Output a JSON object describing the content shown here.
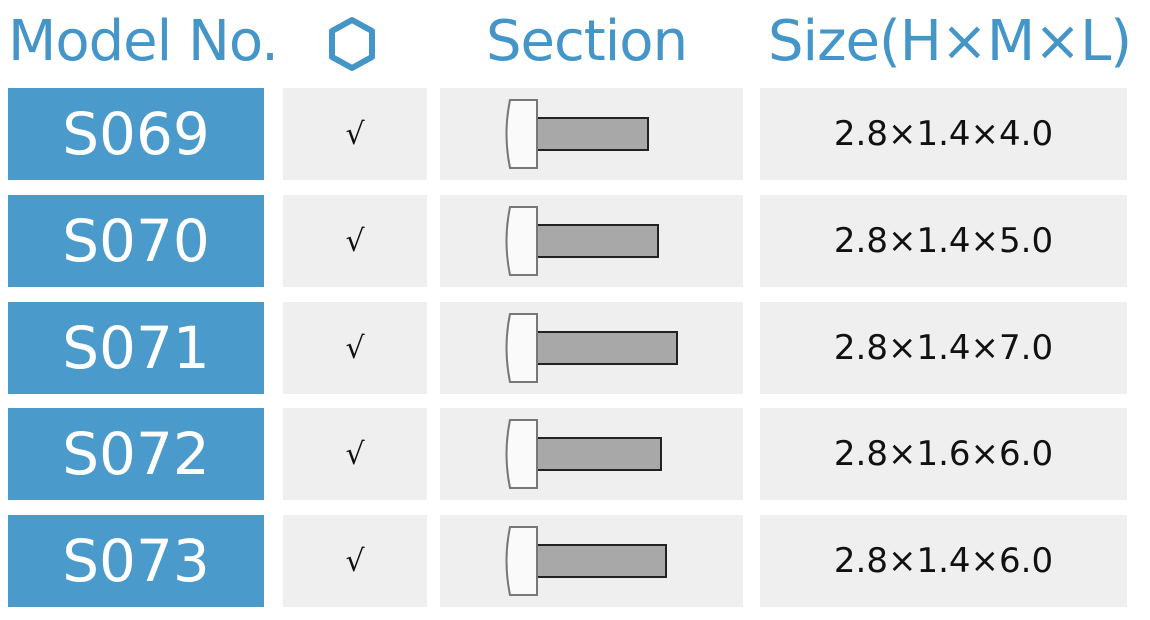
{
  "header": {
    "model_label": "Model No.",
    "drive_icon": "hexagon-socket-icon",
    "section_label": "Section",
    "size_label": "Size(H×M×L)"
  },
  "colors": {
    "accent": "#4a9bcb",
    "cell_bg": "#efefef"
  },
  "rows": [
    {
      "model": "S069",
      "check": "√",
      "size": "2.8×1.4×4.0",
      "length_mm": 4.0
    },
    {
      "model": "S070",
      "check": "√",
      "size": "2.8×1.4×5.0",
      "length_mm": 5.0
    },
    {
      "model": "S071",
      "check": "√",
      "size": "2.8×1.4×7.0",
      "length_mm": 7.0
    },
    {
      "model": "S072",
      "check": "√",
      "size": "2.8×1.6×6.0",
      "length_mm": 6.0
    },
    {
      "model": "S073",
      "check": "√",
      "size": "2.8×1.4×6.0",
      "length_mm": 6.0
    }
  ]
}
